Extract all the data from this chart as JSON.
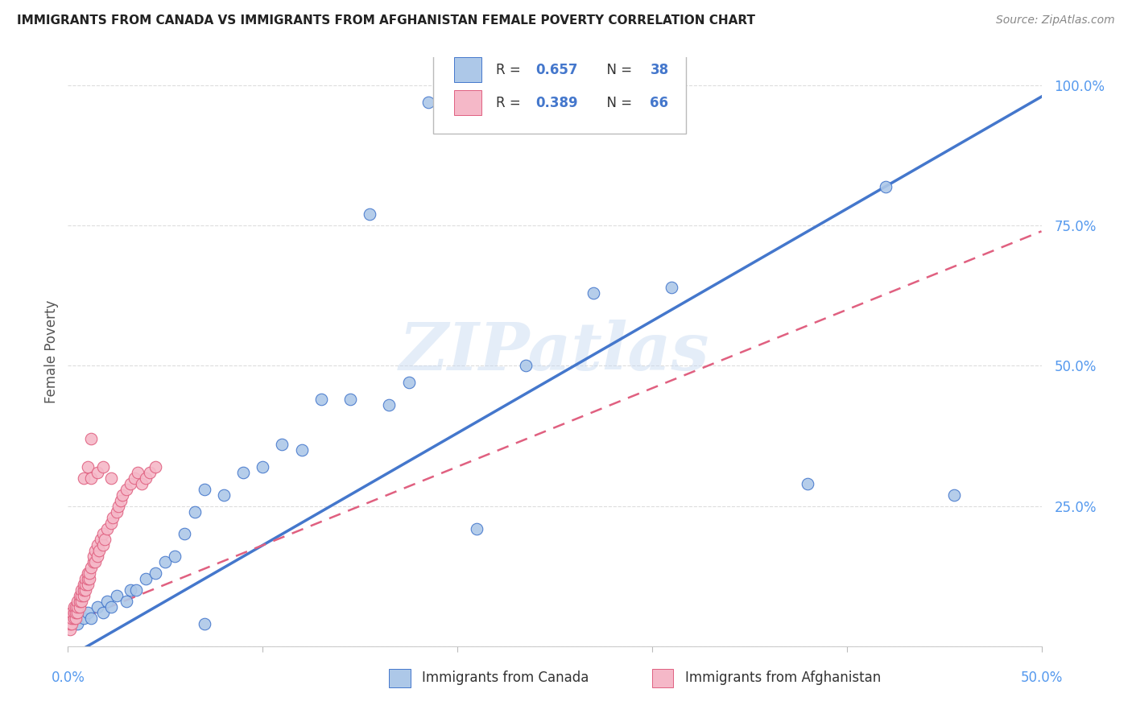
{
  "title": "IMMIGRANTS FROM CANADA VS IMMIGRANTS FROM AFGHANISTAN FEMALE POVERTY CORRELATION CHART",
  "source": "Source: ZipAtlas.com",
  "ylabel": "Female Poverty",
  "xlim": [
    0.0,
    0.5
  ],
  "ylim": [
    0.0,
    1.05
  ],
  "canada_R": 0.657,
  "canada_N": 38,
  "afghanistan_R": 0.389,
  "afghanistan_N": 66,
  "canada_color": "#adc8e8",
  "afghanistan_color": "#f5b8c8",
  "canada_line_color": "#4477cc",
  "afghanistan_line_color": "#e06080",
  "watermark": "ZIPatlas",
  "canada_x": [
    0.005,
    0.008,
    0.01,
    0.012,
    0.015,
    0.018,
    0.02,
    0.022,
    0.025,
    0.03,
    0.032,
    0.035,
    0.04,
    0.045,
    0.05,
    0.055,
    0.06,
    0.065,
    0.07,
    0.08,
    0.09,
    0.1,
    0.11,
    0.12,
    0.13,
    0.145,
    0.155,
    0.165,
    0.175,
    0.185,
    0.21,
    0.235,
    0.27,
    0.31,
    0.38,
    0.42,
    0.455,
    0.07
  ],
  "canada_y": [
    0.04,
    0.05,
    0.06,
    0.05,
    0.07,
    0.06,
    0.08,
    0.07,
    0.09,
    0.08,
    0.1,
    0.1,
    0.12,
    0.13,
    0.15,
    0.16,
    0.2,
    0.24,
    0.28,
    0.27,
    0.31,
    0.32,
    0.36,
    0.35,
    0.44,
    0.44,
    0.77,
    0.43,
    0.47,
    0.97,
    0.21,
    0.5,
    0.63,
    0.64,
    0.29,
    0.82,
    0.27,
    0.04
  ],
  "afghanistan_x": [
    0.001,
    0.001,
    0.001,
    0.002,
    0.002,
    0.002,
    0.003,
    0.003,
    0.003,
    0.004,
    0.004,
    0.004,
    0.005,
    0.005,
    0.005,
    0.006,
    0.006,
    0.006,
    0.007,
    0.007,
    0.007,
    0.008,
    0.008,
    0.008,
    0.009,
    0.009,
    0.009,
    0.01,
    0.01,
    0.01,
    0.011,
    0.011,
    0.012,
    0.012,
    0.013,
    0.013,
    0.014,
    0.014,
    0.015,
    0.015,
    0.016,
    0.017,
    0.018,
    0.018,
    0.019,
    0.02,
    0.022,
    0.023,
    0.025,
    0.026,
    0.027,
    0.028,
    0.03,
    0.032,
    0.034,
    0.036,
    0.038,
    0.04,
    0.042,
    0.045,
    0.008,
    0.01,
    0.012,
    0.015,
    0.018,
    0.022
  ],
  "afghanistan_y": [
    0.03,
    0.04,
    0.05,
    0.04,
    0.05,
    0.06,
    0.05,
    0.06,
    0.07,
    0.05,
    0.06,
    0.07,
    0.06,
    0.07,
    0.08,
    0.07,
    0.08,
    0.09,
    0.08,
    0.09,
    0.1,
    0.09,
    0.1,
    0.11,
    0.1,
    0.11,
    0.12,
    0.11,
    0.12,
    0.13,
    0.12,
    0.13,
    0.37,
    0.14,
    0.15,
    0.16,
    0.15,
    0.17,
    0.16,
    0.18,
    0.17,
    0.19,
    0.18,
    0.2,
    0.19,
    0.21,
    0.22,
    0.23,
    0.24,
    0.25,
    0.26,
    0.27,
    0.28,
    0.29,
    0.3,
    0.31,
    0.29,
    0.3,
    0.31,
    0.32,
    0.3,
    0.32,
    0.3,
    0.31,
    0.32,
    0.3
  ]
}
